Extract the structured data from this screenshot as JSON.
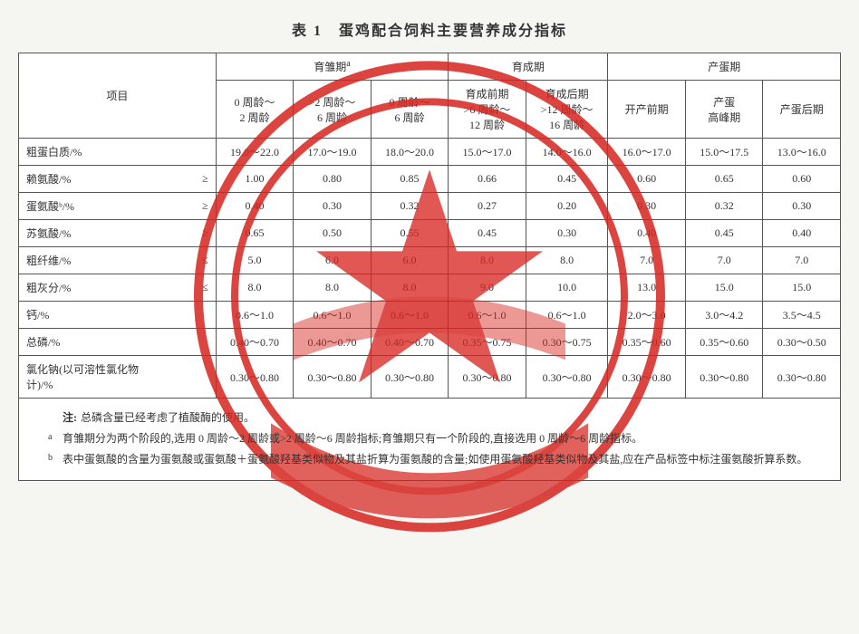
{
  "title": "表 1　蛋鸡配合饲料主要营养成分指标",
  "header": {
    "item": "项目",
    "group1": "育雏期",
    "group1_sup": "a",
    "group2": "育成期",
    "group3": "产蛋期",
    "g1c1": "0 周龄～\n2 周龄",
    "g1c2": ">2 周龄～\n6 周龄",
    "g1c3": "0 周龄～\n6 周龄",
    "g2c1": "育成前期\n>6 周龄～\n12 周龄",
    "g2c2": "育成后期\n>12 周龄～\n16 周龄",
    "g3c1": "开产前期",
    "g3c2": "产蛋\n高峰期",
    "g3c3": "产蛋后期"
  },
  "rows": [
    {
      "label": "粗蛋白质/%",
      "op": "",
      "v": [
        "19.0～22.0",
        "17.0～19.0",
        "18.0～20.0",
        "15.0～17.0",
        "14.0～16.0",
        "16.0～17.0",
        "15.0～17.5",
        "13.0～16.0"
      ]
    },
    {
      "label": "赖氨酸/%",
      "op": "≥",
      "v": [
        "1.00",
        "0.80",
        "0.85",
        "0.66",
        "0.45",
        "0.60",
        "0.65",
        "0.60"
      ]
    },
    {
      "label": "蛋氨酸ᵇ/%",
      "op": "≥",
      "v": [
        "0.40",
        "0.30",
        "0.32",
        "0.27",
        "0.20",
        "0.30",
        "0.32",
        "0.30"
      ]
    },
    {
      "label": "苏氨酸/%",
      "op": "≥",
      "v": [
        "0.65",
        "0.50",
        "0.55",
        "0.45",
        "0.30",
        "0.40",
        "0.45",
        "0.40"
      ]
    },
    {
      "label": "粗纤维/%",
      "op": "≤",
      "v": [
        "5.0",
        "6.0",
        "6.0",
        "8.0",
        "8.0",
        "7.0",
        "7.0",
        "7.0"
      ]
    },
    {
      "label": "粗灰分/%",
      "op": "≤",
      "v": [
        "8.0",
        "8.0",
        "8.0",
        "9.0",
        "10.0",
        "13.0",
        "15.0",
        "15.0"
      ]
    },
    {
      "label": "钙/%",
      "op": "",
      "v": [
        "0.6～1.0",
        "0.6～1.0",
        "0.6～1.0",
        "0.6～1.0",
        "0.6～1.0",
        "2.0～3.0",
        "3.0～4.2",
        "3.5～4.5"
      ]
    },
    {
      "label": "总磷/%",
      "op": "",
      "v": [
        "0.40～0.70",
        "0.40～0.70",
        "0.40～0.70",
        "0.35～0.75",
        "0.30～0.75",
        "0.35～0.60",
        "0.35～0.60",
        "0.30～0.50"
      ]
    },
    {
      "label": "氯化钠(以可溶性氯化物\n计)/%",
      "op": "",
      "v": [
        "0.30～0.80",
        "0.30～0.80",
        "0.30～0.80",
        "0.30～0.80",
        "0.30～0.80",
        "0.30～0.80",
        "0.30～0.80",
        "0.30～0.80"
      ]
    }
  ],
  "notes": {
    "lead": "注:",
    "line0": "总磷含量已经考虑了植酸酶的使用。",
    "fn_a": "育雏期分为两个阶段的,选用 0 周龄～2 周龄或>2 周龄～6 周龄指标;育雏期只有一个阶段的,直接选用 0 周龄～6 周龄指标。",
    "fn_b": "表中蛋氨酸的含量为蛋氨酸或蛋氨酸＋蛋氨酸羟基类似物及其盐折算为蛋氨酸的含量;如使用蛋氨酸羟基类似物及其盐,应在产品标签中标注蛋氨酸折算系数。"
  },
  "style": {
    "stamp_stroke": "#d6241f",
    "stamp_fill": "#d6241f",
    "bg": "#f5f5f2",
    "border": "#555555",
    "text": "#333333"
  }
}
